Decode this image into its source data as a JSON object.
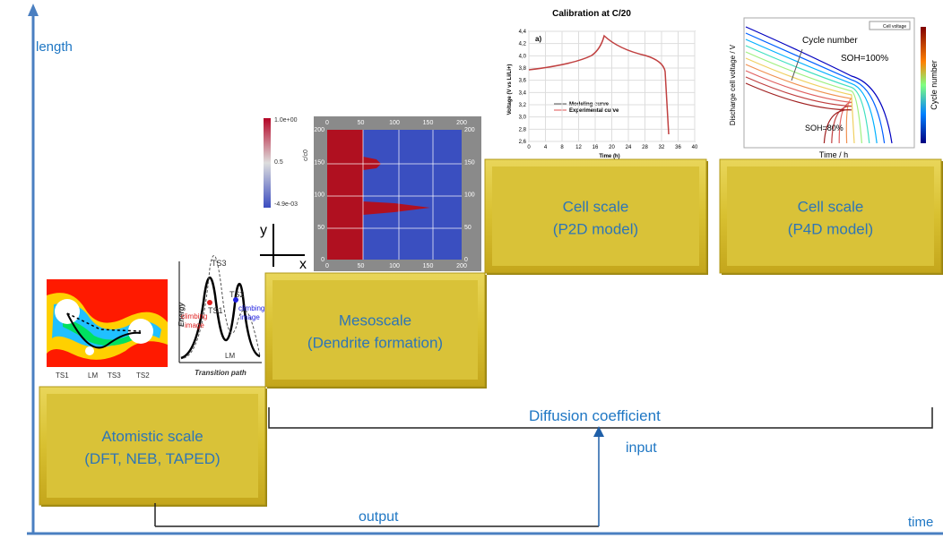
{
  "axes": {
    "y_label": "length",
    "x_label": "time"
  },
  "boxes": [
    {
      "title": "Atomistic scale",
      "subtitle": "(DFT, NEB, TAPED)"
    },
    {
      "title": "Mesoscale",
      "subtitle": "(Dendrite formation)"
    },
    {
      "title": "Cell scale",
      "subtitle": "(P2D model)"
    },
    {
      "title": "Cell scale",
      "subtitle": "(P4D model)"
    }
  ],
  "connections": {
    "bracket_label": "Diffusion coefficient",
    "input": "input",
    "output": "output"
  },
  "atomistic_map": {
    "labels": [
      "TS1",
      "LM",
      "TS3",
      "TS2"
    ]
  },
  "energy_plot": {
    "y_label": "Energy",
    "x_label": "Transition path",
    "ts3": "TS3",
    "ts2": "TS2",
    "ts1": "TS1",
    "lm": "LM",
    "climbing_left": [
      "climbing",
      "image"
    ],
    "climbing_right": [
      "climbing",
      "image"
    ]
  },
  "dendrite": {
    "colorbar": [
      "1.0e+00",
      "0.5",
      "-4.9e-03"
    ],
    "colorbar_label": "c/c0",
    "ticks": [
      "0",
      "50",
      "100",
      "150",
      "200"
    ],
    "axis_y": "y",
    "axis_x": "x"
  },
  "calibration": {
    "title": "Calibration at C/20",
    "panel": "a)",
    "y_label": "Voltage (V vs Li/Li+)",
    "x_label": "Time (h)",
    "yticks": [
      "4,4",
      "4,2",
      "4,0",
      "3,8",
      "3,6",
      "3,4",
      "3,2",
      "3,0",
      "2,8",
      "2,6"
    ],
    "xticks": [
      "0",
      "4",
      "8",
      "12",
      "16",
      "20",
      "24",
      "28",
      "32",
      "36",
      "40"
    ],
    "legend": [
      "Modeling curve",
      "Experimental curve"
    ]
  },
  "p4d": {
    "y_label": "Discharge cell voltage  / V",
    "x_label": "Time / h",
    "colorbar_label": "Cycle number",
    "legend": "Cell voltage",
    "annotations": [
      "Cycle number",
      "SOH=100%",
      "SOH=80%"
    ]
  }
}
